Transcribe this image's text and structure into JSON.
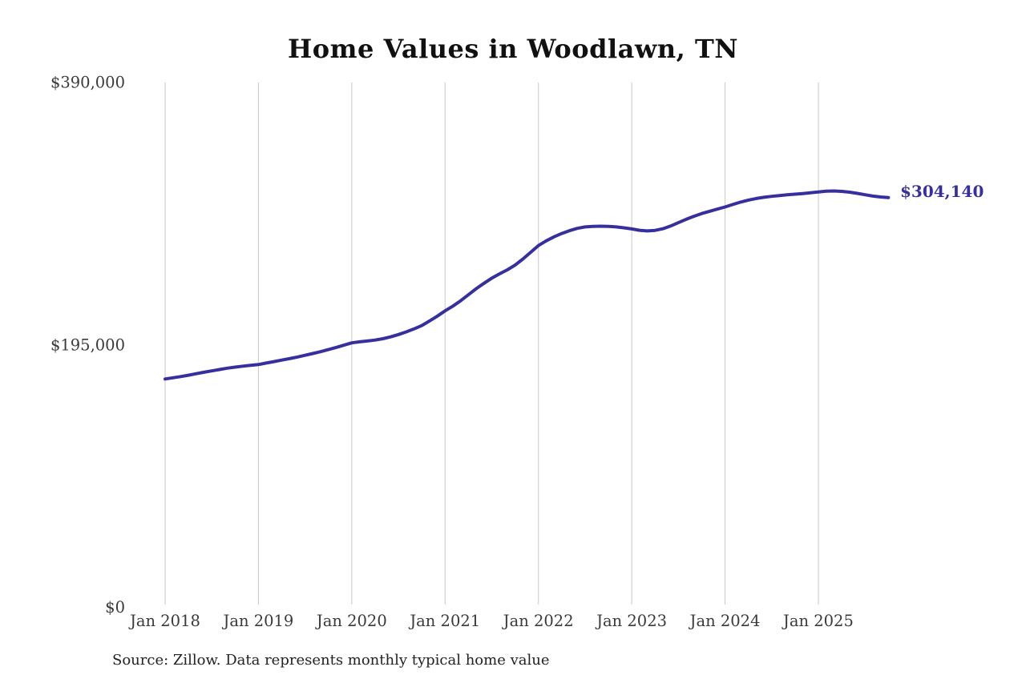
{
  "page": {
    "background_color": "#ffffff"
  },
  "header": {
    "title": "Home Values in Woodlawn, TN"
  },
  "footer": {
    "source_note": "Source: Zillow. Data represents monthly typical home value"
  },
  "colors": {
    "line": "#36309e",
    "end_label": "#36309e",
    "grid": "#c9c9c9",
    "title_text": "#111111",
    "axis_text": "#3a3a3a",
    "note_text": "#222222"
  },
  "chart_data": {
    "type": "line",
    "title": "Home Values in Woodlawn, TN",
    "xlabel": "",
    "ylabel": "",
    "ylim": [
      0,
      390000
    ],
    "y_ticks": [
      0,
      195000,
      390000
    ],
    "y_tick_labels": [
      "$0",
      "$195,000",
      "$390,000"
    ],
    "x_tick_labels": [
      "Jan 2018",
      "Jan 2019",
      "Jan 2020",
      "Jan 2021",
      "Jan 2022",
      "Jan 2023",
      "Jan 2024",
      "Jan 2025"
    ],
    "grid": "vertical-only",
    "legend": "none",
    "final_value": 304140,
    "final_value_label": "$304,140",
    "series": [
      {
        "name": "Monthly typical home value",
        "start_month": "Jan 2018",
        "frequency": "monthly",
        "values": [
          169400,
          170300,
          171200,
          172200,
          173300,
          174400,
          175400,
          176400,
          177400,
          178200,
          178900,
          179500,
          180100,
          181200,
          182300,
          183400,
          184500,
          185700,
          187000,
          188300,
          189700,
          191200,
          192800,
          194500,
          196200,
          197000,
          197600,
          198300,
          199300,
          200700,
          202400,
          204400,
          206600,
          209100,
          212500,
          216100,
          220000,
          223500,
          227500,
          232000,
          236500,
          240500,
          244300,
          247500,
          250500,
          254000,
          258500,
          263500,
          268500,
          272000,
          275000,
          277500,
          279600,
          281300,
          282400,
          282800,
          282900,
          282800,
          282400,
          281700,
          280900,
          279900,
          279400,
          279800,
          281000,
          283000,
          285500,
          288000,
          290300,
          292300,
          294000,
          295600,
          297200,
          299000,
          300800,
          302300,
          303500,
          304400,
          305100,
          305700,
          306200,
          306700,
          307200,
          307800,
          308400,
          308900,
          309100,
          308800,
          308200,
          307300,
          306300,
          305300,
          304600,
          304140
        ]
      }
    ]
  }
}
